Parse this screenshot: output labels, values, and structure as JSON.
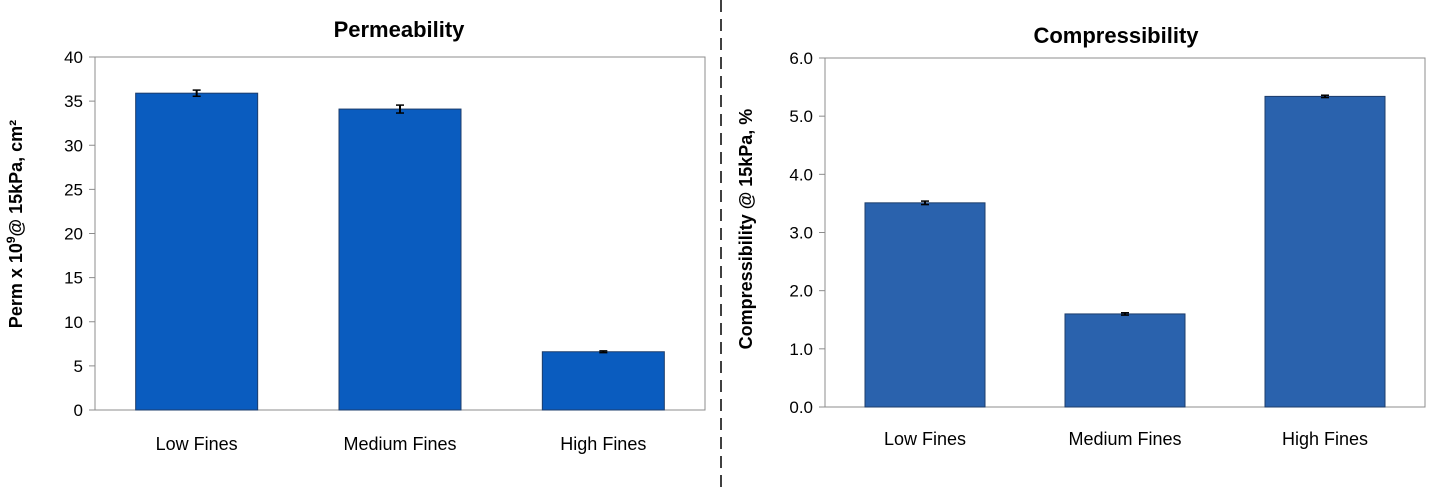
{
  "chart_data": [
    {
      "type": "bar",
      "title": "Permeability",
      "xlabel": "",
      "ylabel_main": "Perm x 10",
      "ylabel_sup": "9",
      "ylabel_rest": "@ 15kPa, cm²",
      "ylim": [
        0,
        40
      ],
      "yticks": [
        "0",
        "5",
        "10",
        "15",
        "20",
        "25",
        "30",
        "35",
        "40"
      ],
      "categories": [
        "Low Fines",
        "Medium Fines",
        "High Fines"
      ],
      "values": [
        35.9,
        34.1,
        6.6
      ],
      "errors": [
        0.35,
        0.45,
        0.1
      ],
      "grid": false,
      "bar_color": "#0a5cbf"
    },
    {
      "type": "bar",
      "title": "Compressibility",
      "xlabel": "",
      "ylabel": "Compressibility @ 15kPa, %",
      "ylim": [
        0,
        6
      ],
      "yticks": [
        "0.0",
        "1.0",
        "2.0",
        "3.0",
        "4.0",
        "5.0",
        "6.0"
      ],
      "categories": [
        "Low Fines",
        "Medium Fines",
        "High Fines"
      ],
      "values": [
        3.51,
        1.6,
        5.34
      ],
      "errors": [
        0.03,
        0.02,
        0.02
      ],
      "grid": false,
      "bar_color": "#2a62ad"
    }
  ]
}
